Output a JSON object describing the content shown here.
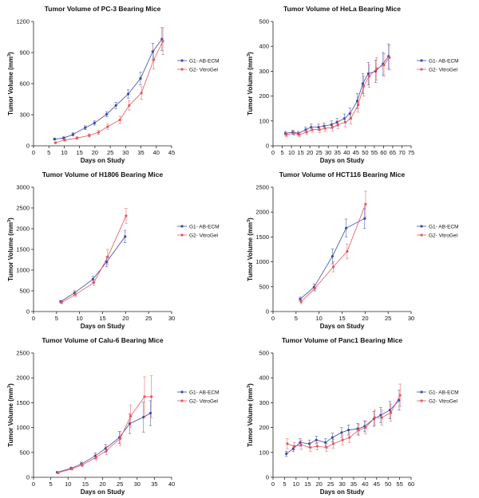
{
  "legend_labels": [
    "G1- AB-ECM",
    "G2- VitroGel"
  ],
  "series_colors": [
    "#3a4aa8",
    "#e8555a"
  ],
  "chart_data": [
    {
      "type": "line",
      "title": "Tumor Volume of PC-3 Bearing Mice",
      "xlabel": "Days on Study",
      "ylabel": "Tumor Volume (mm³)",
      "xlim": [
        0,
        45
      ],
      "ylim": [
        0,
        1200
      ],
      "xticks": [
        0,
        5,
        10,
        15,
        20,
        25,
        30,
        35,
        40,
        45
      ],
      "yticks": [
        0,
        300,
        600,
        900,
        1200
      ],
      "series": [
        {
          "name": "G1- AB-ECM",
          "x": [
            7,
            10,
            13,
            17,
            20,
            24,
            27,
            31,
            35,
            39,
            42
          ],
          "y": [
            65,
            75,
            110,
            175,
            220,
            305,
            390,
            500,
            650,
            910,
            1030
          ],
          "err": [
            10,
            12,
            15,
            18,
            20,
            25,
            30,
            40,
            60,
            80,
            110
          ]
        },
        {
          "name": "G2- VitroGel",
          "x": [
            7,
            10,
            14,
            18,
            21,
            24,
            28,
            31,
            35,
            39,
            42
          ],
          "y": [
            30,
            55,
            75,
            100,
            130,
            185,
            250,
            390,
            510,
            830,
            1010
          ],
          "err": [
            8,
            10,
            12,
            15,
            18,
            25,
            35,
            45,
            60,
            90,
            130
          ]
        }
      ]
    },
    {
      "type": "line",
      "title": "Tumor Volume of HeLa Bearing Mice",
      "xlabel": "Days on Study",
      "ylabel": "Tumor Volume (mm³)",
      "xlim": [
        0,
        75
      ],
      "ylim": [
        0,
        500
      ],
      "xticks": [
        0,
        5,
        10,
        15,
        20,
        25,
        30,
        35,
        40,
        45,
        50,
        55,
        60,
        65,
        70,
        75
      ],
      "yticks": [
        0,
        100,
        200,
        300,
        400,
        500
      ],
      "series": [
        {
          "name": "G1- AB-ECM",
          "x": [
            7,
            11,
            14,
            18,
            21,
            25,
            28,
            32,
            35,
            39,
            42,
            46,
            49,
            52,
            56,
            60,
            63
          ],
          "y": [
            50,
            55,
            50,
            65,
            75,
            75,
            80,
            85,
            95,
            110,
            130,
            180,
            250,
            290,
            300,
            330,
            360
          ],
          "err": [
            8,
            8,
            8,
            10,
            12,
            12,
            12,
            15,
            15,
            18,
            22,
            30,
            40,
            45,
            45,
            45,
            50
          ]
        },
        {
          "name": "G2- VitroGel",
          "x": [
            7,
            11,
            14,
            18,
            21,
            25,
            28,
            32,
            35,
            39,
            42,
            46,
            49,
            52,
            56,
            60,
            63
          ],
          "y": [
            45,
            50,
            45,
            55,
            65,
            65,
            70,
            75,
            85,
            95,
            110,
            165,
            240,
            280,
            310,
            325,
            355
          ],
          "err": [
            8,
            8,
            8,
            10,
            10,
            12,
            12,
            15,
            15,
            18,
            22,
            30,
            40,
            45,
            45,
            45,
            50
          ]
        }
      ]
    },
    {
      "type": "line",
      "title": "Tumor Volume of H1806 Bearing Mice",
      "xlabel": "Days on Study",
      "ylabel": "Tumor Volume (mm³)",
      "xlim": [
        0,
        30
      ],
      "ylim": [
        0,
        3000
      ],
      "xticks": [
        0,
        5,
        10,
        15,
        20,
        25,
        30
      ],
      "yticks": [
        0,
        500,
        1000,
        1500,
        2000,
        2500,
        3000
      ],
      "series": [
        {
          "name": "G1- AB-ECM",
          "x": [
            6,
            9,
            13,
            16,
            20
          ],
          "y": [
            240,
            450,
            780,
            1200,
            1810
          ],
          "err": [
            30,
            50,
            70,
            120,
            150
          ]
        },
        {
          "name": "G2- VitroGel",
          "x": [
            6,
            9,
            13,
            16,
            20
          ],
          "y": [
            220,
            410,
            700,
            1320,
            2310
          ],
          "err": [
            30,
            50,
            70,
            180,
            180
          ]
        }
      ]
    },
    {
      "type": "line",
      "title": "Tumor Volume of HCT116 Bearing Mice",
      "xlabel": "Days on Study",
      "ylabel": "Tumor Volume (mm³)",
      "xlim": [
        0,
        30
      ],
      "ylim": [
        0,
        2500
      ],
      "xticks": [
        0,
        5,
        10,
        15,
        20,
        25,
        30
      ],
      "yticks": [
        0,
        500,
        1000,
        1500,
        2000,
        2500
      ],
      "series": [
        {
          "name": "G1- AB-ECM",
          "x": [
            6,
            9,
            13,
            16,
            20
          ],
          "y": [
            250,
            490,
            1110,
            1680,
            1870
          ],
          "err": [
            40,
            60,
            150,
            180,
            200
          ]
        },
        {
          "name": "G2- VitroGel",
          "x": [
            6,
            9,
            13,
            16,
            20
          ],
          "y": [
            200,
            470,
            900,
            1210,
            2160
          ],
          "err": [
            40,
            60,
            100,
            150,
            260
          ]
        }
      ]
    },
    {
      "type": "line",
      "title": "Tumor Volume of Calu-6 Bearing Mice",
      "xlabel": "Days on Study",
      "ylabel": "Tumor Volume (mm³)",
      "xlim": [
        0,
        40
      ],
      "ylim": [
        0,
        2500
      ],
      "xticks": [
        0,
        5,
        10,
        15,
        20,
        25,
        30,
        35,
        40
      ],
      "yticks": [
        0,
        500,
        1000,
        1500,
        2000,
        2500
      ],
      "series": [
        {
          "name": "G1- AB-ECM",
          "x": [
            7,
            11,
            14,
            18,
            21,
            25,
            28,
            32,
            34
          ],
          "y": [
            100,
            180,
            270,
            430,
            580,
            800,
            1080,
            1210,
            1290
          ],
          "err": [
            15,
            25,
            35,
            60,
            80,
            120,
            200,
            300,
            250
          ]
        },
        {
          "name": "G2- VitroGel",
          "x": [
            7,
            11,
            14,
            18,
            21,
            25,
            28,
            32,
            34
          ],
          "y": [
            90,
            170,
            250,
            400,
            540,
            780,
            1230,
            1620,
            1620
          ],
          "err": [
            15,
            25,
            35,
            60,
            80,
            140,
            220,
            400,
            420
          ]
        }
      ]
    },
    {
      "type": "line",
      "title": "Tumor Volume of Panc1 Bearing Mice",
      "xlabel": "Days on Study",
      "ylabel": "Tumor Volume (mm³)",
      "xlim": [
        0,
        60
      ],
      "ylim": [
        0,
        500
      ],
      "xticks": [
        0,
        5,
        10,
        15,
        20,
        25,
        30,
        35,
        40,
        45,
        50,
        55,
        60
      ],
      "yticks": [
        0,
        100,
        200,
        300,
        400,
        500
      ],
      "series": [
        {
          "name": "G1- AB-ECM",
          "x": [
            6,
            9,
            12,
            16,
            19,
            23,
            26,
            30,
            33,
            37,
            40,
            44,
            47,
            51,
            55
          ],
          "y": [
            95,
            115,
            140,
            135,
            150,
            140,
            160,
            180,
            190,
            195,
            205,
            235,
            250,
            270,
            310
          ],
          "err": [
            10,
            12,
            15,
            15,
            15,
            15,
            18,
            20,
            20,
            22,
            22,
            30,
            30,
            35,
            40
          ]
        },
        {
          "name": "G2- VitroGel",
          "x": [
            6,
            9,
            12,
            16,
            19,
            23,
            26,
            30,
            33,
            37,
            40,
            44,
            47,
            51,
            55
          ],
          "y": [
            135,
            125,
            130,
            120,
            125,
            120,
            135,
            150,
            160,
            190,
            200,
            240,
            240,
            260,
            330
          ],
          "err": [
            20,
            15,
            18,
            15,
            15,
            15,
            18,
            20,
            20,
            22,
            25,
            30,
            30,
            35,
            45
          ]
        }
      ]
    }
  ]
}
